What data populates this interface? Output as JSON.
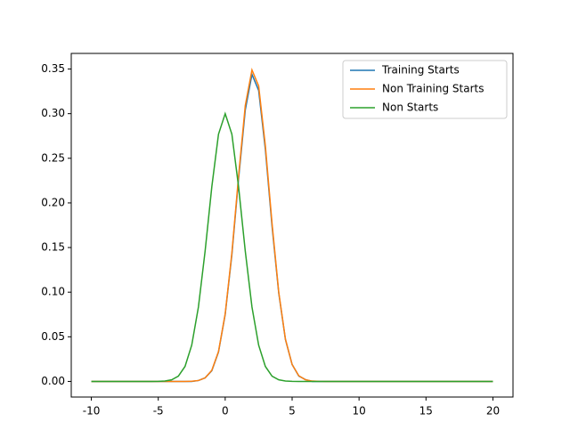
{
  "chart_data": {
    "type": "line",
    "x": [
      -10,
      -9.5,
      -9,
      -8.5,
      -8,
      -7.5,
      -7,
      -6.5,
      -6,
      -5.5,
      -5,
      -4.5,
      -4,
      -3.5,
      -3,
      -2.5,
      -2,
      -1.5,
      -1,
      -0.5,
      0,
      0.5,
      1,
      1.5,
      2,
      2.5,
      3,
      3.5,
      4,
      4.5,
      5,
      5.5,
      6,
      6.5,
      7,
      7.5,
      8,
      8.5,
      9,
      9.5,
      10,
      10.5,
      11,
      11.5,
      12,
      12.5,
      13,
      13.5,
      14,
      14.5,
      15,
      15.5,
      16,
      16.5,
      17,
      17.5,
      18,
      18.5,
      19,
      19.5,
      20
    ],
    "series": [
      {
        "name": "Training Starts",
        "color": "#1f77b4",
        "values": [
          0,
          0,
          0,
          0,
          0,
          0,
          0,
          0,
          0,
          0,
          0,
          0,
          0,
          0,
          0,
          0,
          0.001,
          0.004,
          0.012,
          0.033,
          0.075,
          0.142,
          0.227,
          0.304,
          0.344,
          0.326,
          0.26,
          0.174,
          0.099,
          0.047,
          0.019,
          0.006,
          0.002,
          0,
          0,
          0,
          0,
          0,
          0,
          0,
          0,
          0,
          0,
          0,
          0,
          0,
          0,
          0,
          0,
          0,
          0,
          0,
          0,
          0,
          0,
          0,
          0,
          0,
          0,
          0,
          0
        ]
      },
      {
        "name": "Non Training Starts",
        "color": "#ff7f0e",
        "values": [
          0,
          0,
          0,
          0,
          0,
          0,
          0,
          0,
          0,
          0,
          0,
          0,
          0,
          0,
          0,
          0.0002,
          0.001,
          0.0039,
          0.0124,
          0.0335,
          0.0757,
          0.144,
          0.23,
          0.309,
          0.349,
          0.331,
          0.264,
          0.177,
          0.1,
          0.0474,
          0.0189,
          0.0063,
          0.0018,
          0.0004,
          0.0001,
          0,
          0,
          0,
          0,
          0,
          0,
          0,
          0,
          0,
          0,
          0,
          0,
          0,
          0,
          0,
          0,
          0,
          0,
          0,
          0,
          0,
          0,
          0,
          0,
          0,
          0
        ]
      },
      {
        "name": "Non Starts",
        "color": "#2ca02c",
        "values": [
          0,
          0,
          0,
          0,
          0,
          0,
          0,
          0,
          0,
          0,
          0.0001,
          0.0005,
          0.0018,
          0.0059,
          0.0168,
          0.0406,
          0.0834,
          0.146,
          0.218,
          0.277,
          0.3,
          0.277,
          0.218,
          0.146,
          0.0834,
          0.0406,
          0.0168,
          0.0059,
          0.0018,
          0.0005,
          0.0001,
          0,
          0,
          0,
          0,
          0,
          0,
          0,
          0,
          0,
          0,
          0,
          0,
          0,
          0,
          0,
          0,
          0,
          0,
          0,
          0,
          0,
          0,
          0,
          0,
          0,
          0,
          0,
          0,
          0,
          0
        ]
      }
    ],
    "xlim": [
      -11.5,
      21.5
    ],
    "xticks": [
      -10,
      -5,
      0,
      5,
      10,
      15,
      20
    ],
    "ylim": [
      -0.0175,
      0.3675
    ],
    "yticks": [
      {
        "value": 0,
        "label": "0.00"
      },
      {
        "value": 0.05,
        "label": "0.05"
      },
      {
        "value": 0.1,
        "label": "0.10"
      },
      {
        "value": 0.15,
        "label": "0.15"
      },
      {
        "value": 0.2,
        "label": "0.20"
      },
      {
        "value": 0.25,
        "label": "0.25"
      },
      {
        "value": 0.3,
        "label": "0.30"
      },
      {
        "value": 0.35,
        "label": "0.35"
      }
    ],
    "legend": "upper right"
  }
}
